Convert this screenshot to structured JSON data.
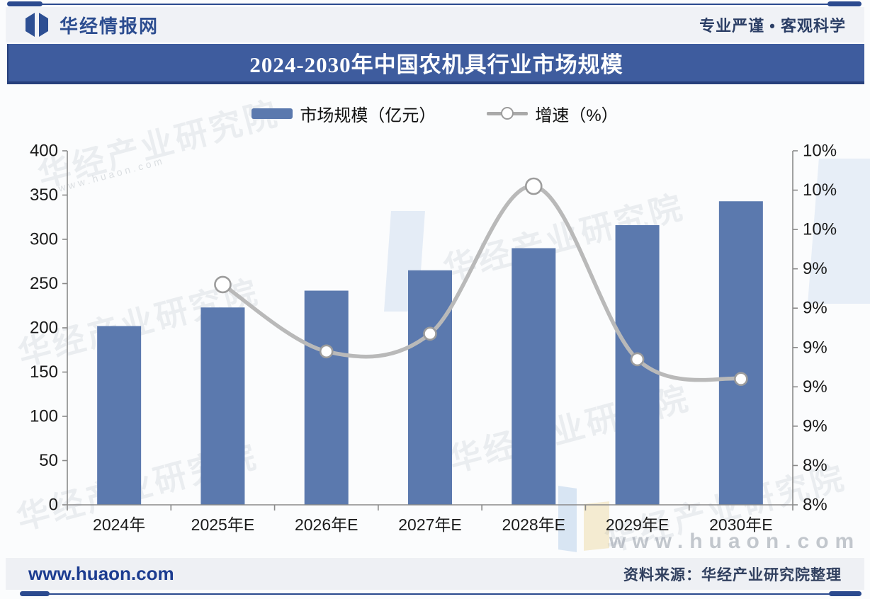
{
  "header": {
    "brand": "华经情报网",
    "slogan": "专业严谨 • 客观科学"
  },
  "footer": {
    "site": "www.huaon.com",
    "source": "资料来源：华经产业研究院整理"
  },
  "watermarks": {
    "org": "华经产业研究院",
    "site": "www.huaon.com"
  },
  "chart_data": {
    "type": "bar+line combo",
    "title": "2024-2030年中国农机具行业市场规模",
    "categories": [
      "2024年",
      "2025年E",
      "2026年E",
      "2027年E",
      "2028年E",
      "2029年E",
      "2030年E"
    ],
    "series": [
      {
        "name": "市场规模（亿元）",
        "type": "bar",
        "axis": "left",
        "color": "#5b79ae",
        "values": [
          202,
          223,
          242,
          265,
          290,
          316,
          343
        ]
      },
      {
        "name": "增速（%）",
        "type": "line",
        "axis": "right",
        "color": "#b9b9b9",
        "values": [
          null,
          9.32,
          8.98,
          9.07,
          9.82,
          8.94,
          8.84
        ]
      }
    ],
    "left_axis": {
      "min": 0,
      "max": 400,
      "step": 50,
      "labels": [
        "400",
        "350",
        "300",
        "250",
        "200",
        "150",
        "100",
        "50",
        "0"
      ]
    },
    "right_axis": {
      "min": 8.2,
      "max": 10.0,
      "step": 0.2,
      "labels": [
        "10%",
        "10%",
        "10%",
        "9%",
        "9%",
        "9%",
        "9%",
        "9%",
        "8%",
        "8%"
      ]
    },
    "grid": false,
    "legend_position": "top-center"
  }
}
